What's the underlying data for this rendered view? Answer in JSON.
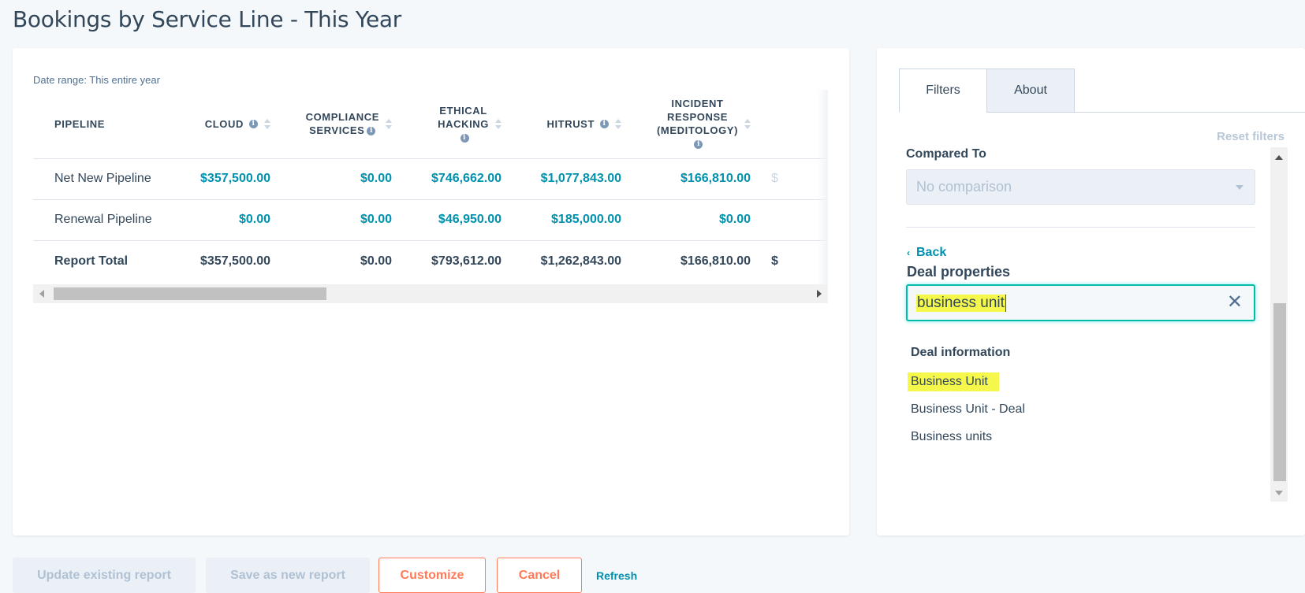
{
  "page": {
    "title": "Bookings by Service Line - This Year"
  },
  "report": {
    "date_range": "Date range: This entire year",
    "columns": {
      "pipeline": "PIPELINE",
      "cloud": "CLOUD",
      "compliance_1": "COMPLIANCE",
      "compliance_2": "SERVICES",
      "ethical_1": "ETHICAL",
      "ethical_2": "HACKING",
      "hitrust": "HITRUST",
      "incident_1": "INCIDENT",
      "incident_2": "RESPONSE",
      "incident_3": "(MEDITOLOGY)"
    },
    "rows": [
      {
        "label": "Net New Pipeline",
        "cloud": "$357,500.00",
        "compliance": "$0.00",
        "ethical": "$746,662.00",
        "hitrust": "$1,077,843.00",
        "incident": "$166,810.00",
        "next": "$"
      },
      {
        "label": "Renewal Pipeline",
        "cloud": "$0.00",
        "compliance": "$0.00",
        "ethical": "$46,950.00",
        "hitrust": "$185,000.00",
        "incident": "$0.00",
        "next": ""
      },
      {
        "label": "Report Total",
        "cloud": "$357,500.00",
        "compliance": "$0.00",
        "ethical": "$793,612.00",
        "hitrust": "$1,262,843.00",
        "incident": "$166,810.00",
        "next": "$"
      }
    ]
  },
  "filters": {
    "tabs": [
      "Filters",
      "About"
    ],
    "reset": "Reset filters",
    "compared_to_label": "Compared To",
    "compared_to_value": "No comparison",
    "back": "Back",
    "deal_properties": "Deal properties",
    "search_value": "business unit",
    "group_title": "Deal information",
    "options": [
      "Business Unit",
      "Business Unit - Deal",
      "Business units"
    ]
  },
  "actions": {
    "update": "Update existing report",
    "save_new": "Save as new report",
    "customize": "Customize",
    "cancel": "Cancel",
    "refresh": "Refresh"
  },
  "colors": {
    "accent": "#0091ae",
    "orange": "#ff7a59",
    "highlight": "#f5f84a",
    "focus": "#00bda5"
  }
}
